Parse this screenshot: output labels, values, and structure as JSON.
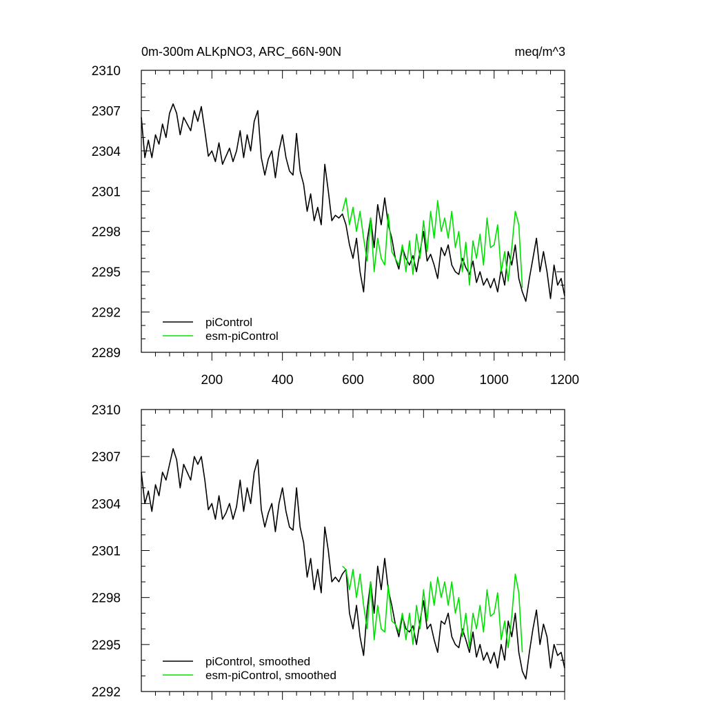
{
  "chart_data": [
    {
      "type": "line",
      "title": "0m-300m ALKpNO3, ARC_66N-90N",
      "units": "meq/m^3",
      "xlim": [
        0,
        1200
      ],
      "ylim": [
        2289,
        2310
      ],
      "xticks": [
        200,
        400,
        600,
        800,
        1000,
        1200
      ],
      "yticks": [
        2289,
        2292,
        2295,
        2298,
        2301,
        2304,
        2307,
        2310
      ],
      "xtick_labels": [
        "200",
        "400",
        "600",
        "800",
        "1000",
        "1200"
      ],
      "ytick_labels": [
        "2289",
        "2292",
        "2295",
        "2298",
        "2301",
        "2304",
        "2307",
        "2310"
      ],
      "grid": false,
      "legend_position": "bottom-left",
      "series": [
        {
          "name": "piControl",
          "color": "#000000",
          "x": [
            0,
            10,
            20,
            30,
            40,
            50,
            60,
            70,
            80,
            90,
            100,
            110,
            120,
            130,
            140,
            150,
            160,
            170,
            180,
            190,
            200,
            210,
            220,
            230,
            240,
            250,
            260,
            270,
            280,
            290,
            300,
            310,
            320,
            330,
            340,
            350,
            360,
            370,
            380,
            390,
            400,
            410,
            420,
            430,
            440,
            450,
            460,
            470,
            480,
            490,
            500,
            510,
            520,
            530,
            540,
            550,
            560,
            570,
            580,
            590,
            600,
            610,
            620,
            630,
            640,
            650,
            660,
            670,
            680,
            690,
            700,
            710,
            720,
            730,
            740,
            750,
            760,
            770,
            780,
            790,
            800,
            810,
            820,
            830,
            840,
            850,
            860,
            870,
            880,
            890,
            900,
            910,
            920,
            930,
            940,
            950,
            960,
            970,
            980,
            990,
            1000,
            1010,
            1020,
            1030,
            1040,
            1050,
            1060,
            1070,
            1080,
            1090,
            1100,
            1110,
            1120,
            1130,
            1140,
            1150,
            1160,
            1170,
            1180,
            1190,
            1200
          ],
          "values": [
            2306.5,
            2303.5,
            2304.8,
            2303.5,
            2305.2,
            2304.5,
            2306.0,
            2305.0,
            2306.8,
            2307.5,
            2306.8,
            2305.2,
            2306.5,
            2306.0,
            2305.5,
            2307.0,
            2306.2,
            2307.3,
            2305.5,
            2303.6,
            2304.0,
            2303.2,
            2304.6,
            2303.0,
            2303.6,
            2304.2,
            2303.2,
            2304.0,
            2305.5,
            2303.5,
            2305.2,
            2304.0,
            2306.2,
            2307.0,
            2303.5,
            2302.2,
            2303.4,
            2304.0,
            2302.0,
            2304.0,
            2305.2,
            2303.5,
            2302.5,
            2302.2,
            2305.3,
            2302.5,
            2301.5,
            2299.5,
            2300.8,
            2298.8,
            2299.8,
            2298.5,
            2303.0,
            2301.0,
            2298.8,
            2299.2,
            2299.0,
            2299.3,
            2298.5,
            2297.0,
            2296.0,
            2297.5,
            2295.0,
            2293.5,
            2297.3,
            2299.0,
            2296.8,
            2300.0,
            2298.5,
            2300.5,
            2298.5,
            2297.5,
            2296.0,
            2295.2,
            2296.8,
            2296.0,
            2295.5,
            2296.2,
            2295.0,
            2296.5,
            2298.0,
            2295.8,
            2296.3,
            2295.5,
            2294.5,
            2296.8,
            2296.2,
            2297.0,
            2295.5,
            2295.0,
            2294.8,
            2296.0,
            2295.3,
            2294.8,
            2295.8,
            2294.2,
            2295.0,
            2294.0,
            2294.5,
            2293.8,
            2294.5,
            2293.5,
            2295.2,
            2294.0,
            2296.5,
            2295.5,
            2297.0,
            2294.5,
            2293.5,
            2292.8,
            2294.5,
            2296.0,
            2297.5,
            2295.0,
            2296.5,
            2295.0,
            2293.0,
            2295.5,
            2294.0,
            2294.5,
            2293.2
          ]
        },
        {
          "name": "esm-piControl",
          "color": "#00e000",
          "x": [
            570,
            580,
            590,
            600,
            610,
            620,
            630,
            640,
            650,
            660,
            670,
            680,
            690,
            700,
            710,
            720,
            730,
            740,
            750,
            760,
            770,
            780,
            790,
            800,
            810,
            820,
            830,
            840,
            850,
            860,
            870,
            880,
            890,
            900,
            910,
            920,
            930,
            940,
            950,
            960,
            970,
            980,
            990,
            1000,
            1010,
            1020,
            1030,
            1040,
            1050,
            1060,
            1070,
            1080
          ],
          "values": [
            2299.5,
            2300.5,
            2298.5,
            2299.8,
            2298.0,
            2299.5,
            2297.5,
            2295.8,
            2299.0,
            2295.0,
            2297.5,
            2296.0,
            2295.5,
            2299.3,
            2296.5,
            2296.0,
            2295.5,
            2297.0,
            2295.0,
            2297.3,
            2294.8,
            2297.8,
            2296.0,
            2298.8,
            2296.5,
            2299.5,
            2297.5,
            2300.3,
            2298.0,
            2299.0,
            2297.5,
            2299.5,
            2296.8,
            2298.0,
            2295.0,
            2297.2,
            2294.0,
            2297.3,
            2296.0,
            2297.8,
            2295.5,
            2299.0,
            2296.8,
            2297.0,
            2298.5,
            2295.0,
            2296.5,
            2294.3,
            2296.8,
            2299.5,
            2298.5,
            2293.8
          ]
        }
      ]
    },
    {
      "type": "line",
      "xlim": [
        0,
        1200
      ],
      "ylim": [
        2292,
        2310
      ],
      "xticks": [
        200,
        400,
        600,
        800,
        1000,
        1200
      ],
      "yticks": [
        2292,
        2295,
        2298,
        2301,
        2304,
        2307,
        2310
      ],
      "ytick_labels": [
        "2292",
        "2295",
        "2298",
        "2301",
        "2304",
        "2307",
        "2310"
      ],
      "grid": false,
      "legend_position": "bottom-left",
      "series": [
        {
          "name": "piControl, smoothed",
          "color": "#000000",
          "x": [
            0,
            10,
            20,
            30,
            40,
            50,
            60,
            70,
            80,
            90,
            100,
            110,
            120,
            130,
            140,
            150,
            160,
            170,
            180,
            190,
            200,
            210,
            220,
            230,
            240,
            250,
            260,
            270,
            280,
            290,
            300,
            310,
            320,
            330,
            340,
            350,
            360,
            370,
            380,
            390,
            400,
            410,
            420,
            430,
            440,
            450,
            460,
            470,
            480,
            490,
            500,
            510,
            520,
            530,
            540,
            550,
            560,
            570,
            580,
            590,
            600,
            610,
            620,
            630,
            640,
            650,
            660,
            670,
            680,
            690,
            700,
            710,
            720,
            730,
            740,
            750,
            760,
            770,
            780,
            790,
            800,
            810,
            820,
            830,
            840,
            850,
            860,
            870,
            880,
            890,
            900,
            910,
            920,
            930,
            940,
            950,
            960,
            970,
            980,
            990,
            1000,
            1010,
            1020,
            1030,
            1040,
            1050,
            1060,
            1070,
            1080,
            1090,
            1100,
            1110,
            1120,
            1130,
            1140,
            1150,
            1160,
            1170,
            1180,
            1190,
            1200
          ],
          "values": [
            2306.0,
            2304.0,
            2304.8,
            2303.5,
            2305.2,
            2304.5,
            2306.0,
            2305.5,
            2306.5,
            2307.5,
            2306.8,
            2305.0,
            2306.5,
            2306.0,
            2305.5,
            2307.0,
            2306.5,
            2307.0,
            2305.5,
            2303.6,
            2304.0,
            2303.0,
            2304.5,
            2303.0,
            2303.4,
            2304.0,
            2303.0,
            2303.8,
            2305.5,
            2303.5,
            2305.0,
            2304.0,
            2306.0,
            2306.8,
            2303.6,
            2302.5,
            2303.4,
            2304.0,
            2302.2,
            2304.0,
            2305.0,
            2303.5,
            2302.5,
            2302.3,
            2305.0,
            2302.5,
            2301.5,
            2299.3,
            2300.5,
            2298.5,
            2299.8,
            2298.3,
            2302.5,
            2301.0,
            2299.0,
            2299.3,
            2299.0,
            2299.5,
            2299.8,
            2297.0,
            2296.0,
            2297.5,
            2295.5,
            2294.3,
            2297.2,
            2299.0,
            2297.0,
            2300.0,
            2298.5,
            2300.5,
            2298.5,
            2297.5,
            2296.3,
            2295.5,
            2296.8,
            2296.0,
            2295.8,
            2296.2,
            2295.0,
            2296.5,
            2297.8,
            2296.0,
            2296.3,
            2295.3,
            2294.5,
            2296.5,
            2296.3,
            2297.0,
            2295.5,
            2295.0,
            2294.8,
            2296.0,
            2295.3,
            2294.5,
            2295.8,
            2294.2,
            2295.0,
            2294.0,
            2294.5,
            2293.8,
            2294.5,
            2293.5,
            2295.0,
            2294.0,
            2296.5,
            2295.5,
            2297.0,
            2294.5,
            2293.3,
            2292.8,
            2294.5,
            2296.0,
            2297.2,
            2295.0,
            2296.3,
            2295.5,
            2293.5,
            2295.0,
            2294.3,
            2294.5,
            2293.5
          ]
        },
        {
          "name": "esm-piControl, smoothed",
          "color": "#00e000",
          "x": [
            570,
            580,
            590,
            600,
            610,
            620,
            630,
            640,
            650,
            660,
            670,
            680,
            690,
            700,
            710,
            720,
            730,
            740,
            750,
            760,
            770,
            780,
            790,
            800,
            810,
            820,
            830,
            840,
            850,
            860,
            870,
            880,
            890,
            900,
            910,
            920,
            930,
            940,
            950,
            960,
            970,
            980,
            990,
            1000,
            1010,
            1020,
            1030,
            1040,
            1050,
            1060,
            1070,
            1080
          ],
          "values": [
            2300.0,
            2299.8,
            2298.5,
            2299.8,
            2298.0,
            2299.5,
            2297.5,
            2296.0,
            2299.0,
            2295.3,
            2297.5,
            2296.0,
            2295.8,
            2298.8,
            2296.5,
            2296.3,
            2295.8,
            2297.0,
            2295.3,
            2297.0,
            2295.0,
            2297.5,
            2296.0,
            2298.5,
            2296.5,
            2299.0,
            2297.5,
            2299.3,
            2298.0,
            2299.0,
            2297.5,
            2299.0,
            2297.0,
            2298.0,
            2295.5,
            2297.0,
            2294.8,
            2297.0,
            2296.0,
            2297.5,
            2295.8,
            2298.5,
            2296.8,
            2297.0,
            2298.3,
            2295.3,
            2296.5,
            2294.8,
            2296.8,
            2299.5,
            2298.3,
            2294.5
          ]
        }
      ]
    }
  ]
}
